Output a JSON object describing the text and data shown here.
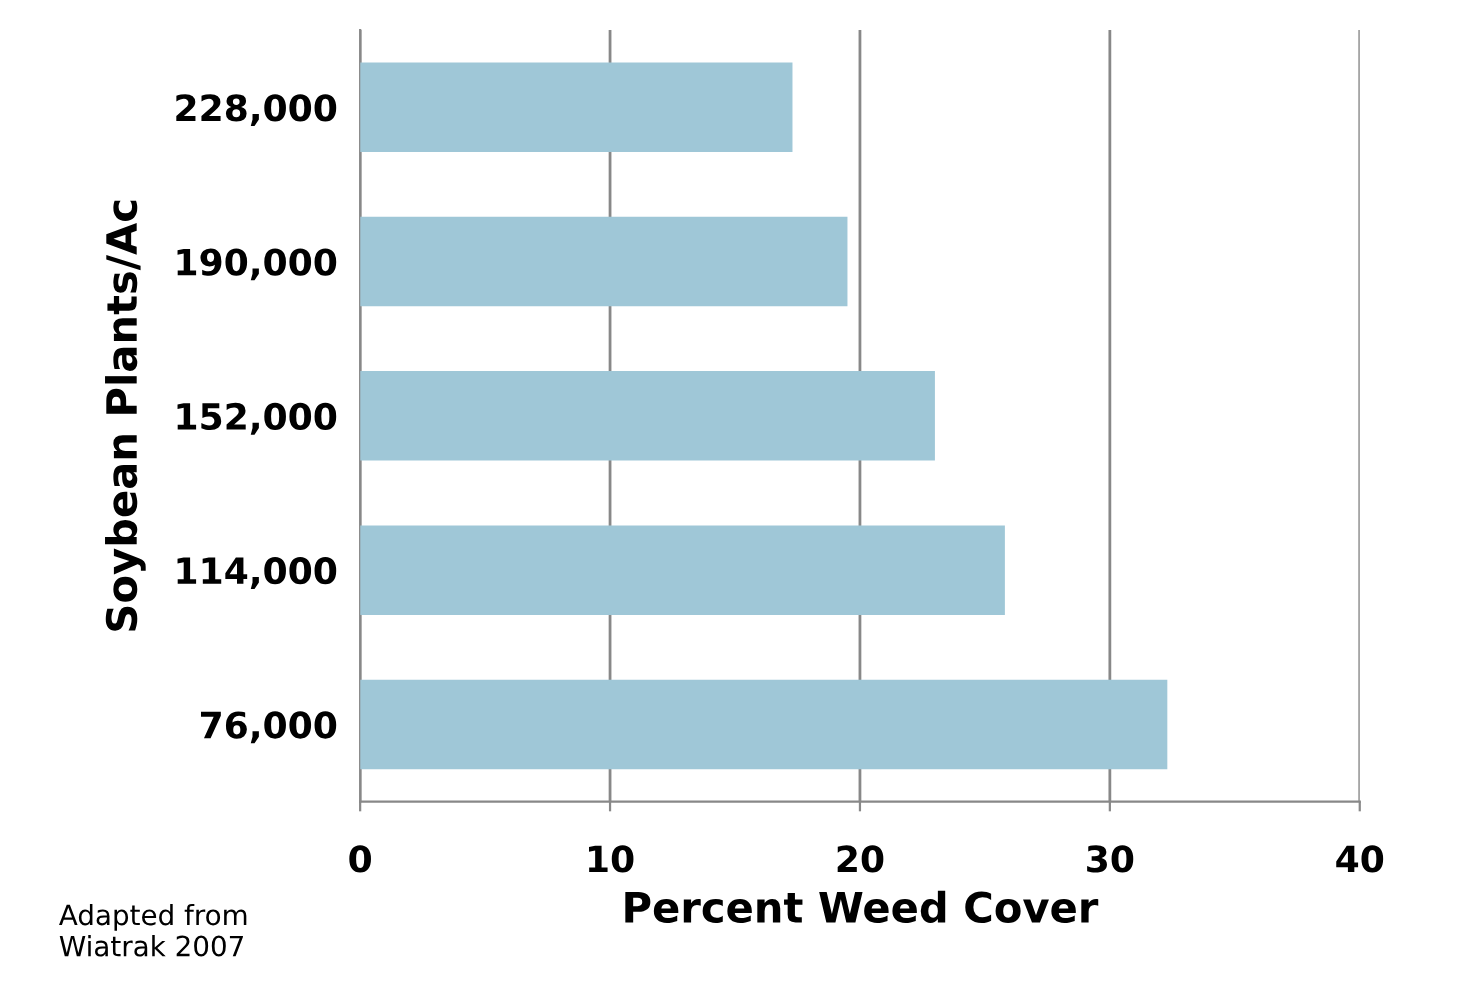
{
  "chart_data": {
    "type": "bar",
    "orientation": "horizontal",
    "categories": [
      "228,000",
      "190,000",
      "152,000",
      "114,000",
      "76,000"
    ],
    "values": [
      17.3,
      19.5,
      23.0,
      25.8,
      32.3
    ],
    "color": "#9fc7d7",
    "xlabel": "Percent Weed Cover",
    "ylabel": "Soybean Plants/Ac",
    "xlim": [
      0,
      40
    ],
    "xticks": [
      0,
      10,
      20,
      30,
      40
    ],
    "grid": "x",
    "annotations": [
      "Adapted from\nWiatrak 2007"
    ]
  }
}
